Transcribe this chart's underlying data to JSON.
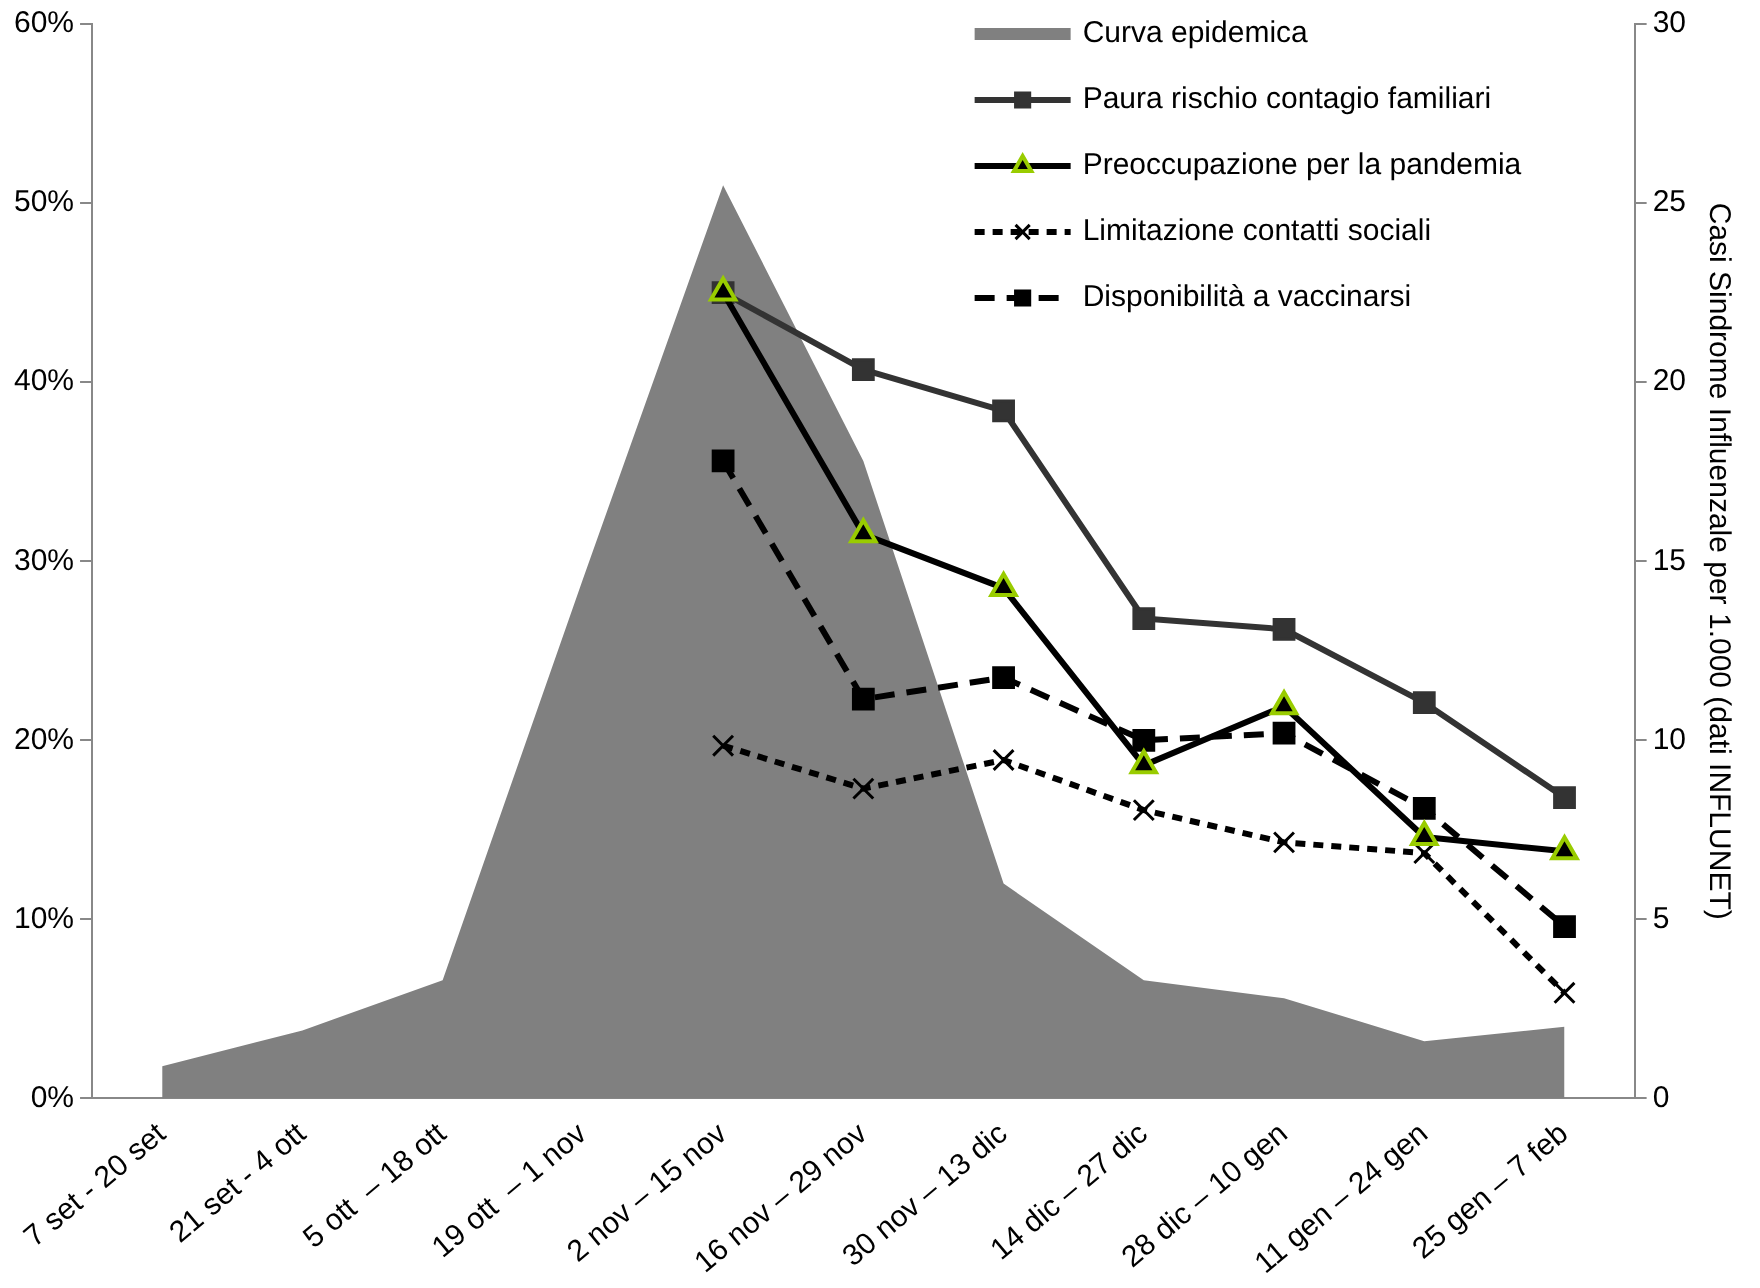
{
  "chart_data": {
    "type": "line",
    "categories": [
      "7 set - 20 set",
      "21 set - 4 ott",
      "5 ott  – 18 ott",
      "19 ott  – 1 nov",
      "2 nov – 15 nov",
      "16 nov – 29 nov",
      "30 nov – 13 dic",
      "14 dic – 27 dic",
      "28 dic – 10 gen",
      "11 gen – 24 gen",
      "25 gen – 7 feb"
    ],
    "y2label": "Casi Sindrome Influenzale per 1.000 (dati INFLUNET)",
    "ylim": [
      0,
      60
    ],
    "yticks": [
      {
        "value": 0,
        "label": "0%"
      },
      {
        "value": 10,
        "label": "10%"
      },
      {
        "value": 20,
        "label": "20%"
      },
      {
        "value": 30,
        "label": "30%"
      },
      {
        "value": 40,
        "label": "40%"
      },
      {
        "value": 50,
        "label": "50%"
      },
      {
        "value": 60,
        "label": "60%"
      }
    ],
    "y2lim": [
      0,
      30
    ],
    "y2ticks": [
      0,
      5,
      10,
      15,
      20,
      25,
      30
    ],
    "grid": false,
    "legend": "top right",
    "series": [
      {
        "name": "Curva epidemica",
        "type": "area",
        "axis": "y2",
        "color": "#808080",
        "values": [
          0.9,
          1.9,
          3.3,
          14.5,
          25.5,
          17.8,
          6.0,
          3.3,
          2.8,
          1.6,
          2.0
        ]
      },
      {
        "name": "Paura rischio contagio familiari",
        "color": "#333333",
        "marker": "square",
        "line_style": "solid",
        "values": [
          null,
          null,
          null,
          null,
          45.0,
          40.7,
          38.4,
          26.8,
          26.2,
          22.1,
          16.8
        ]
      },
      {
        "name": "Preoccupazione per la pandemia",
        "color": "#000000",
        "marker": "triangle",
        "line_style": "solid",
        "values": [
          null,
          null,
          null,
          null,
          45.0,
          31.5,
          28.5,
          18.6,
          21.9,
          14.6,
          13.8
        ]
      },
      {
        "name": "Limitazione contatti sociali",
        "color": "#000000",
        "marker": "cross",
        "line_style": "dotted",
        "values": [
          null,
          null,
          null,
          null,
          19.7,
          17.3,
          18.9,
          16.1,
          14.3,
          13.7,
          5.9
        ]
      },
      {
        "name": "Disponibilità a vaccinarsi",
        "color": "#000000",
        "marker": "square",
        "line_style": "dashed",
        "values": [
          null,
          null,
          null,
          null,
          35.6,
          22.3,
          23.5,
          20.0,
          20.4,
          16.2,
          9.6
        ]
      }
    ]
  }
}
